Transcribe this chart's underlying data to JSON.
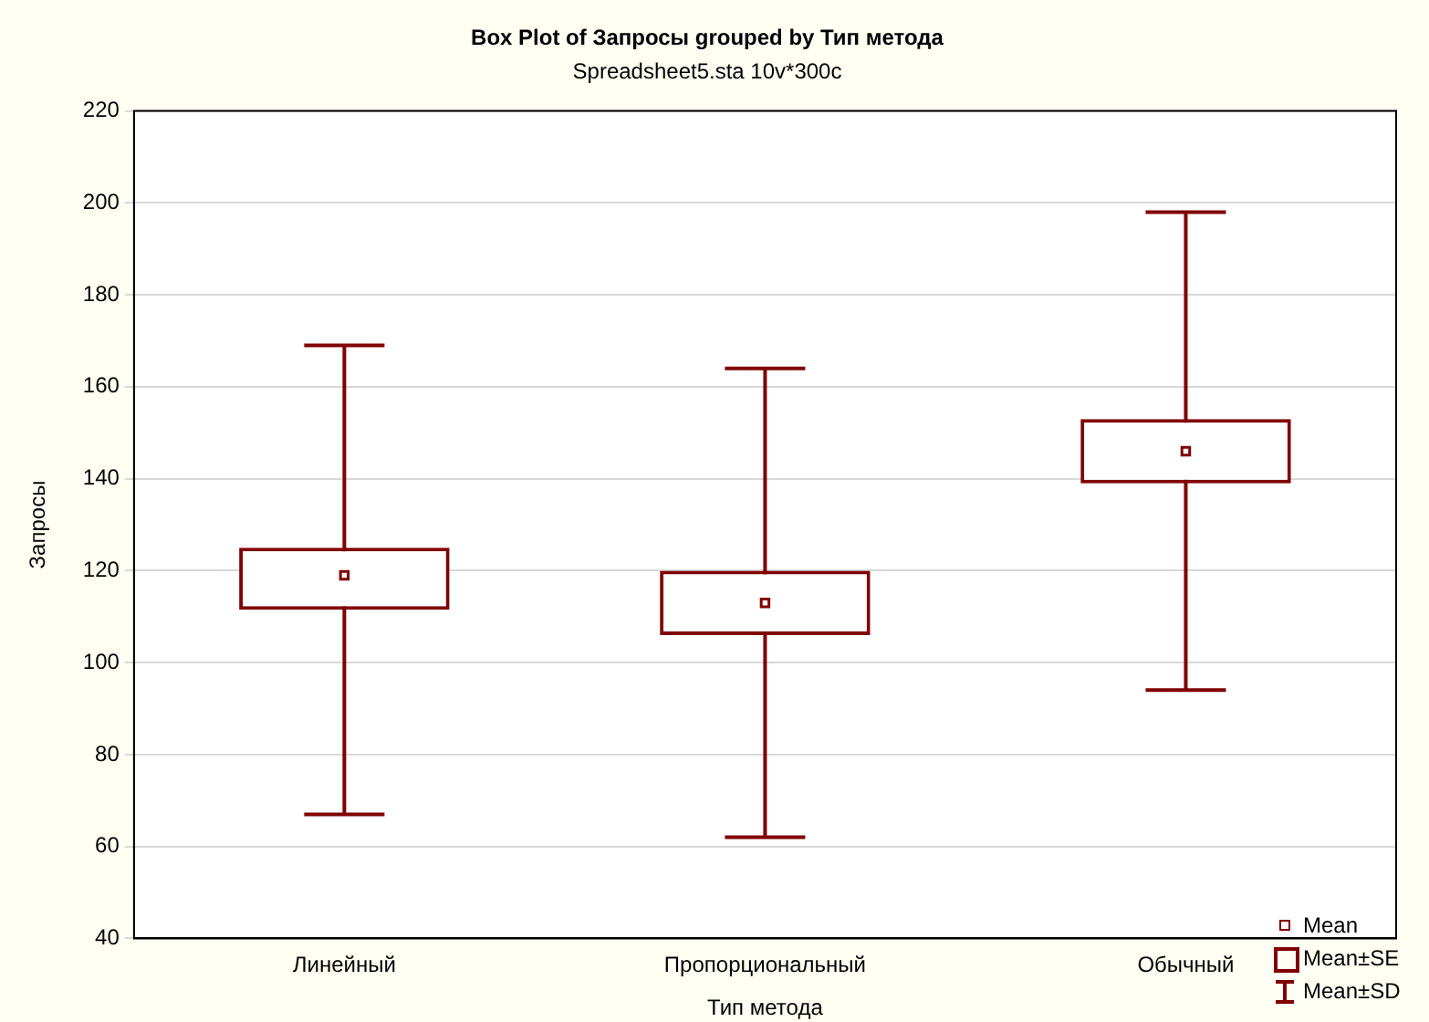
{
  "chart_data": {
    "type": "box",
    "title": "Box Plot of Запросы grouped by Тип метода",
    "subtitle": "Spreadsheet5.sta 10v*300c",
    "xlabel": "Тип метода",
    "ylabel": "Запросы",
    "categories": [
      "Линейный",
      "Пропорциональный",
      "Обычный"
    ],
    "series": [
      {
        "color": "#800000",
        "boxes": [
          {
            "low": 67,
            "q1": 111.5,
            "median": 119,
            "q3": 125,
            "high": 169
          },
          {
            "low": 62,
            "q1": 106,
            "median": 113,
            "q3": 120,
            "high": 164
          },
          {
            "low": 94,
            "q1": 139,
            "median": 146,
            "q3": 153,
            "high": 198
          }
        ]
      }
    ],
    "marker": "square",
    "annotations": [
      "Mean",
      "Mean±SE",
      "Mean±SD"
    ],
    "ylim": [
      40,
      220
    ],
    "yticks": [
      40,
      60,
      80,
      100,
      120,
      140,
      160,
      180,
      200,
      220
    ],
    "grid": "y"
  }
}
